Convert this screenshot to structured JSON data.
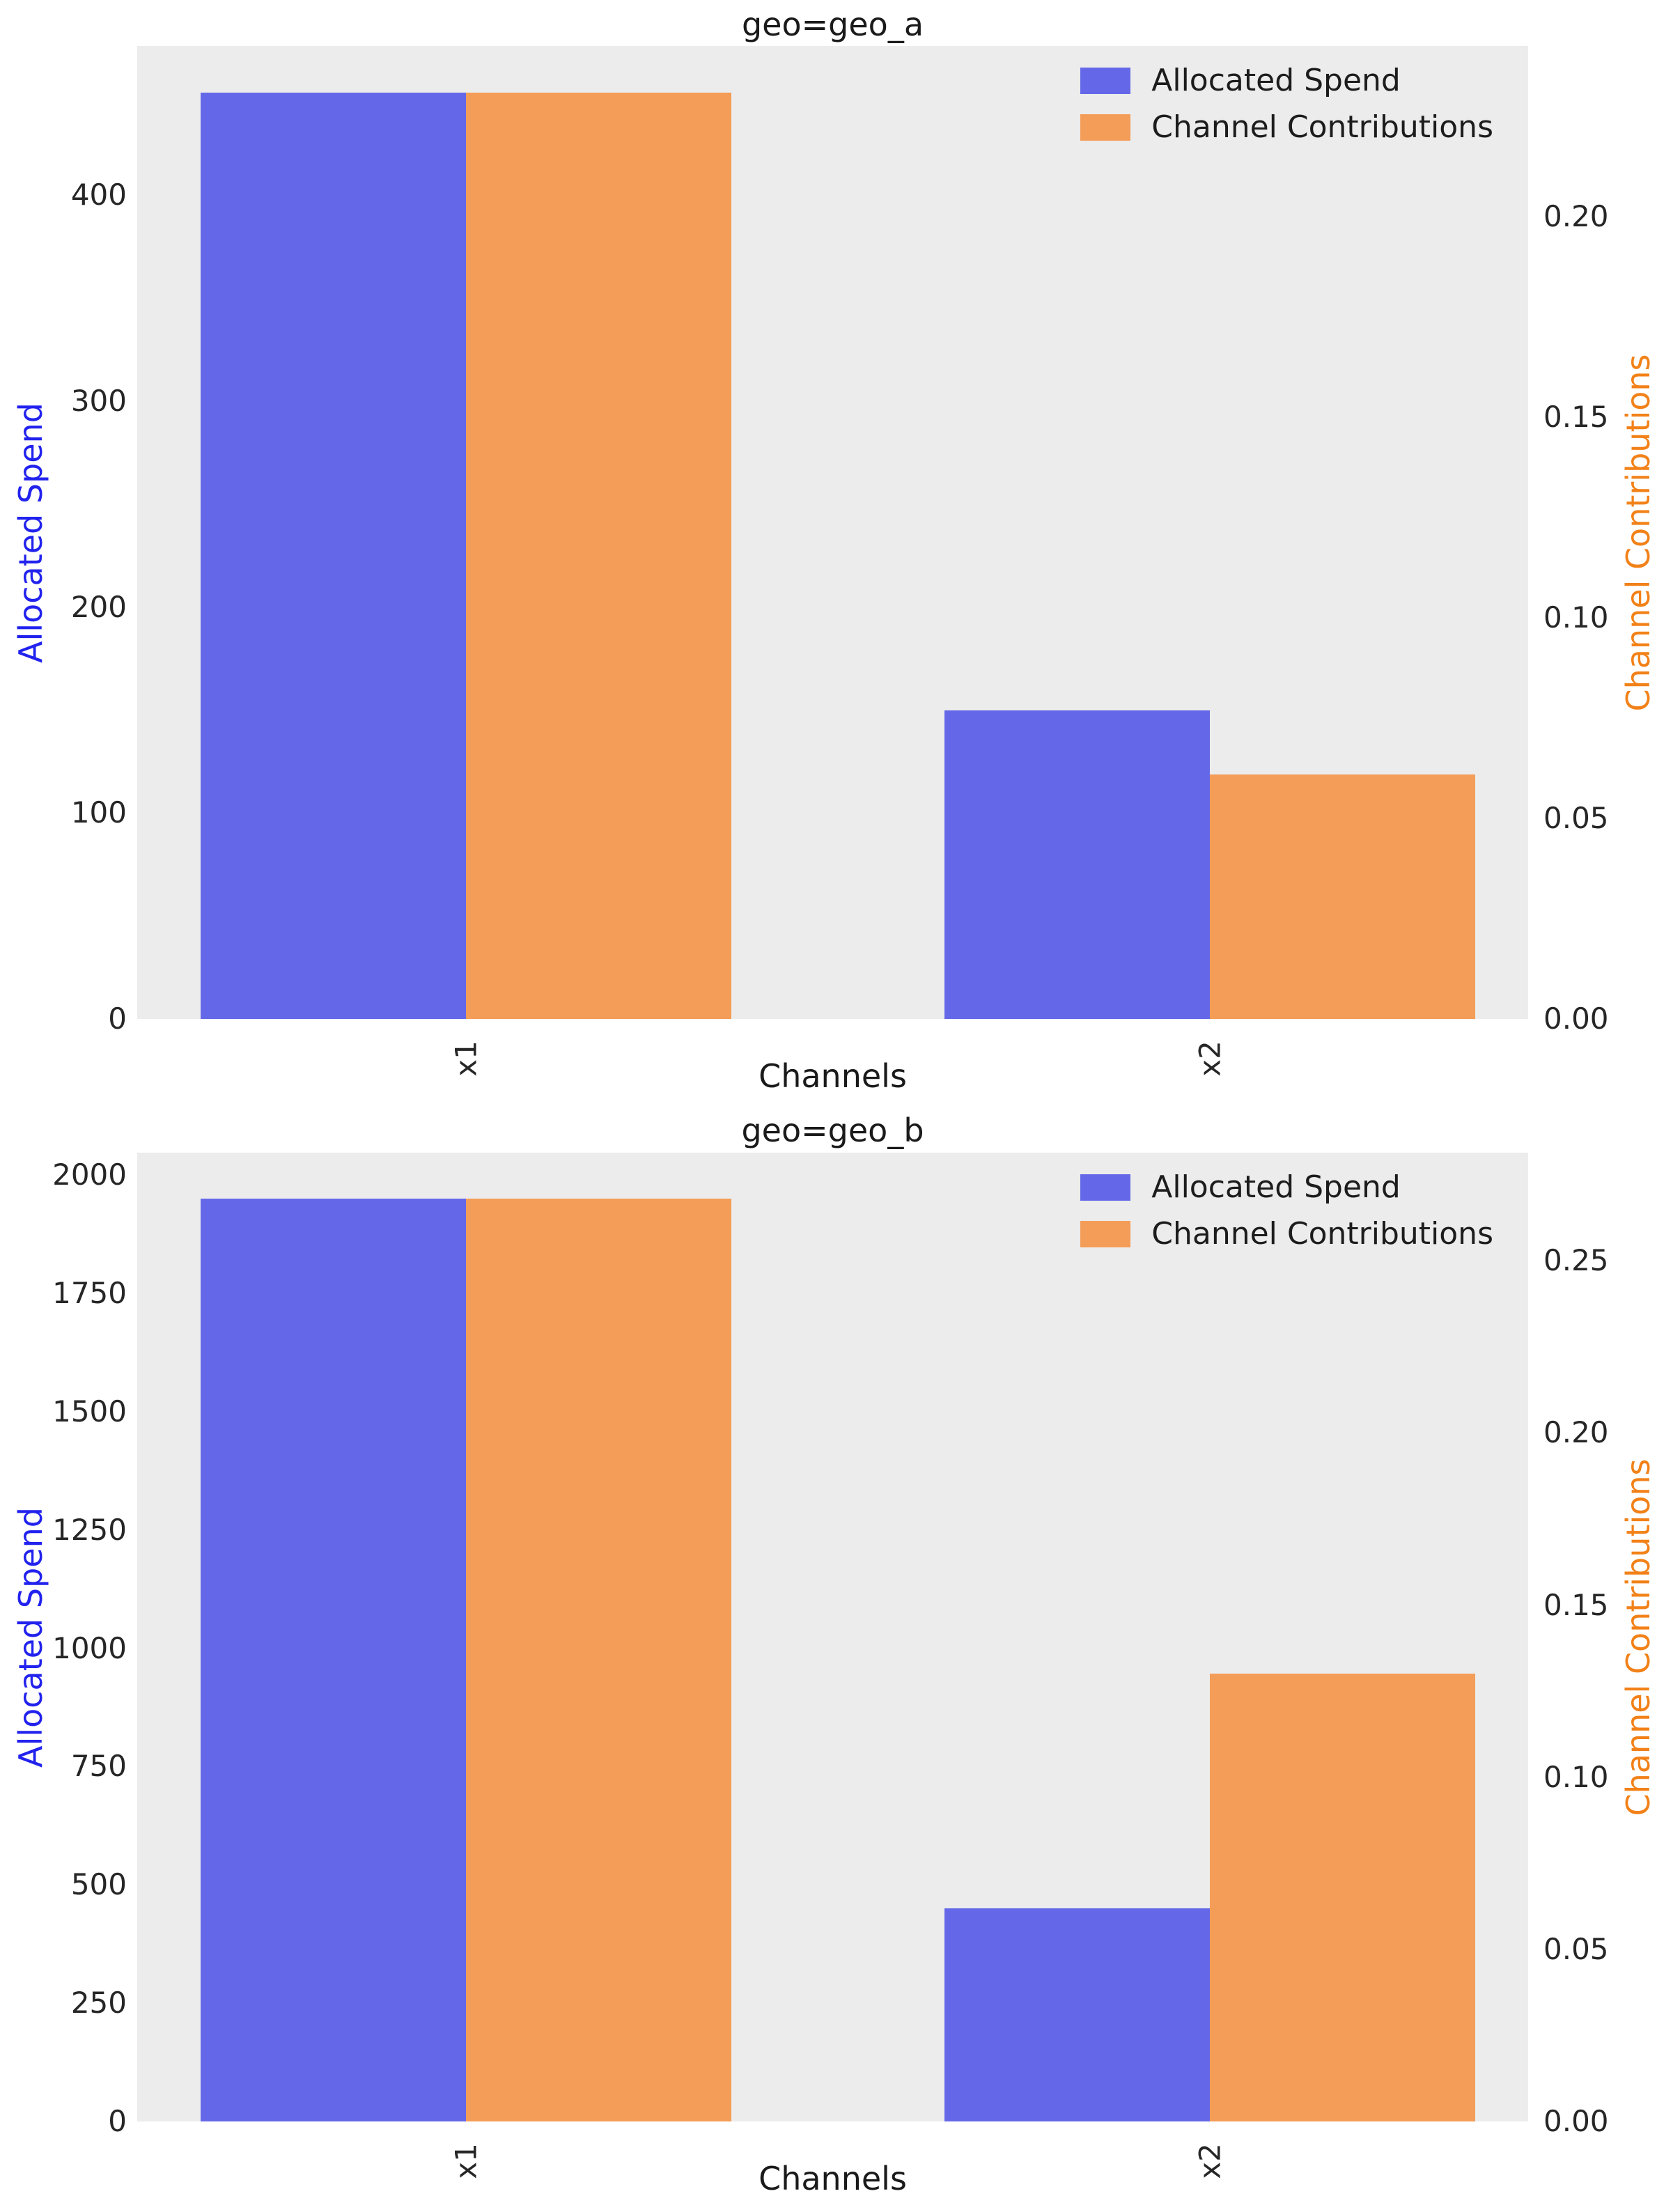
{
  "figure": {
    "plot_background": "#ececec",
    "colors": {
      "allocated_spend_bar": "#6468e8",
      "channel_contributions_bar": "#f49d58",
      "allocated_spend_axis_label": "#2222ee",
      "channel_contributions_axis_label": "#f28118"
    }
  },
  "chart_data": [
    {
      "type": "bar",
      "title": "geo=geo_a",
      "xlabel": "Channels",
      "categories": [
        "x1",
        "x2"
      ],
      "series": [
        {
          "name": "Allocated Spend",
          "axis": "left",
          "values": [
            450,
            150
          ]
        },
        {
          "name": "Channel Contributions",
          "axis": "right",
          "values": [
            0.231,
            0.061
          ]
        }
      ],
      "left_axis": {
        "label": "Allocated Spend",
        "tick_labels": [
          "0",
          "100",
          "200",
          "300",
          "400"
        ],
        "tick_values": [
          0,
          100,
          200,
          300,
          400
        ],
        "ylim": [
          0,
          472.5
        ]
      },
      "right_axis": {
        "label": "Channel Contributions",
        "tick_labels": [
          "0.00",
          "0.05",
          "0.10",
          "0.15",
          "0.20"
        ],
        "tick_values": [
          0,
          0.05,
          0.1,
          0.15,
          0.2
        ],
        "ylim": [
          0,
          0.2426
        ]
      },
      "legend": [
        "Allocated Spend",
        "Channel Contributions"
      ],
      "legend_position": "upper right",
      "grid": false
    },
    {
      "type": "bar",
      "title": "geo=geo_b",
      "xlabel": "Channels",
      "categories": [
        "x1",
        "x2"
      ],
      "series": [
        {
          "name": "Allocated Spend",
          "axis": "left",
          "values": [
            1950,
            450
          ]
        },
        {
          "name": "Channel Contributions",
          "axis": "right",
          "values": [
            0.268,
            0.13
          ]
        }
      ],
      "left_axis": {
        "label": "Allocated Spend",
        "tick_labels": [
          "0",
          "250",
          "500",
          "750",
          "1000",
          "1250",
          "1500",
          "1750",
          "2000"
        ],
        "tick_values": [
          0,
          250,
          500,
          750,
          1000,
          1250,
          1500,
          1750,
          2000
        ],
        "ylim": [
          0,
          2047.5
        ]
      },
      "right_axis": {
        "label": "Channel Contributions",
        "tick_labels": [
          "0.00",
          "0.05",
          "0.10",
          "0.15",
          "0.20",
          "0.25"
        ],
        "tick_values": [
          0,
          0.05,
          0.1,
          0.15,
          0.2,
          0.25
        ],
        "ylim": [
          0,
          0.2814
        ]
      },
      "legend": [
        "Allocated Spend",
        "Channel Contributions"
      ],
      "legend_position": "upper right",
      "grid": false
    }
  ]
}
